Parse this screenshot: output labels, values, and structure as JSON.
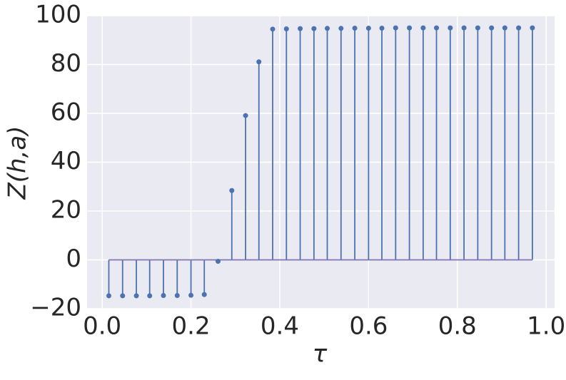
{
  "chart_data": {
    "type": "stem",
    "x_label": "τ",
    "y_label": "Z(h,a)",
    "x": [
      0.015,
      0.046,
      0.077,
      0.107,
      0.138,
      0.169,
      0.2,
      0.23,
      0.261,
      0.292,
      0.323,
      0.353,
      0.384,
      0.415,
      0.446,
      0.477,
      0.507,
      0.538,
      0.569,
      0.6,
      0.63,
      0.661,
      0.692,
      0.723,
      0.753,
      0.784,
      0.815,
      0.846,
      0.877,
      0.907,
      0.938,
      0.969
    ],
    "values": [
      -14.7,
      -14.7,
      -14.7,
      -14.7,
      -14.6,
      -14.6,
      -14.5,
      -14.2,
      -0.6,
      28.4,
      59.1,
      81.1,
      94.5,
      94.6,
      94.7,
      94.7,
      94.8,
      94.8,
      94.9,
      94.9,
      94.9,
      95,
      95,
      95,
      95,
      95,
      95,
      95,
      95,
      95,
      95,
      95
    ],
    "color": "#4c72b0",
    "baseline_color": "#8172b2",
    "xlim": [
      -0.034,
      1.019
    ],
    "ylim": [
      -20,
      100
    ],
    "xticks": [
      {
        "value": 0,
        "label": "0.0"
      },
      {
        "value": 0.2,
        "label": "0.2"
      },
      {
        "value": 0.4,
        "label": "0.4"
      },
      {
        "value": 0.6,
        "label": "0.6"
      },
      {
        "value": 0.8,
        "label": "0.8"
      },
      {
        "value": 1,
        "label": "1.0"
      }
    ],
    "yticks": [
      {
        "value": -20,
        "label": "−20"
      },
      0,
      20,
      40,
      60,
      80,
      100
    ],
    "grid": true
  }
}
